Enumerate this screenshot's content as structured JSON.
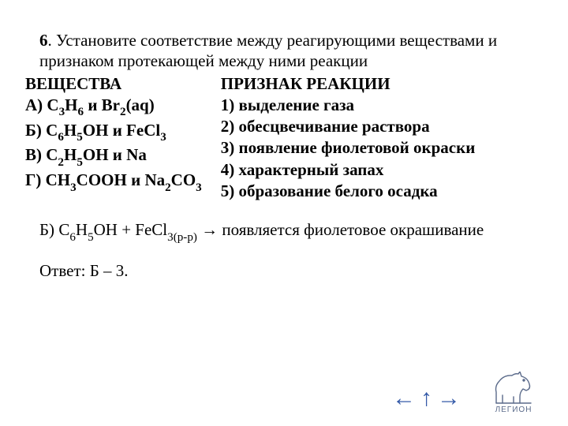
{
  "slide_background": "#ffffff",
  "text_color": "#000000",
  "nav_color": "#355aa8",
  "logo_color": "#5a6a8a",
  "font_family": "Georgia, 'Times New Roman', serif",
  "question_number": "6",
  "question_text": ". Установите соответствие между реагирующими веществами и признаком протекающей между ними реакции",
  "left_header": "ВЕЩЕСТВА",
  "left_items": [
    {
      "label": "А) ",
      "formula_html": "C<span class='sub'>3</span>H<span class='sub'>6</span> и Br<span class='sub'>2</span>(aq)"
    },
    {
      "label": "Б) ",
      "formula_html": "C<span class='sub'>6</span>H<span class='sub'>5</span>OH и FeCl<span class='sub'>3</span>"
    },
    {
      "label": "В) ",
      "formula_html": "C<span class='sub'>2</span>H<span class='sub'>5</span>OH и Na"
    },
    {
      "label": "Г) ",
      "formula_html": "CH<span class='sub'>3</span>COOH и Na<span class='sub'>2</span>CO<span class='sub'>3</span>"
    }
  ],
  "right_header": "ПРИЗНАК РЕАКЦИИ",
  "right_items": [
    "1) выделение газа",
    "2) обесцвечивание раствора",
    "3) появление фиолетовой окраски",
    "4) характерный запах",
    "5) образование белого осадка"
  ],
  "explanation_prefix": "Б) ",
  "explanation_formula_html": "C<span class='sub'>6</span>H<span class='sub'>5</span>OH + FeCl<span class='sub'>3(р-р)</span>",
  "explanation_arrow": " → ",
  "explanation_suffix": "появляется фиолетовое окрашивание",
  "answer_text": "Ответ: Б – 3.",
  "nav": {
    "left": "←",
    "up": "↑",
    "right": "→"
  },
  "logo_text": "ЛЕГИОН",
  "font_sizes": {
    "body": 21,
    "nav": 30,
    "logo": 10
  }
}
